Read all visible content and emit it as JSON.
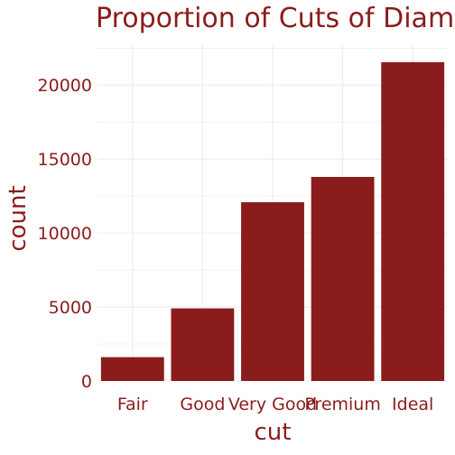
{
  "chart_data": {
    "type": "bar",
    "title": "Proportion of Cuts of Diam",
    "xlabel": "cut",
    "ylabel": "count",
    "categories": [
      "Fair",
      "Good",
      "Very Good",
      "Premium",
      "Ideal"
    ],
    "values": [
      1610,
      4906,
      12082,
      13791,
      21551
    ],
    "ylim": [
      0,
      22700
    ],
    "yticks": [
      0,
      5000,
      10000,
      15000,
      20000
    ],
    "grid": true,
    "legend": "none",
    "colors": {
      "bar": "#8b1c1c",
      "text": "#8b1c1c",
      "grid": "#ebebeb"
    }
  }
}
